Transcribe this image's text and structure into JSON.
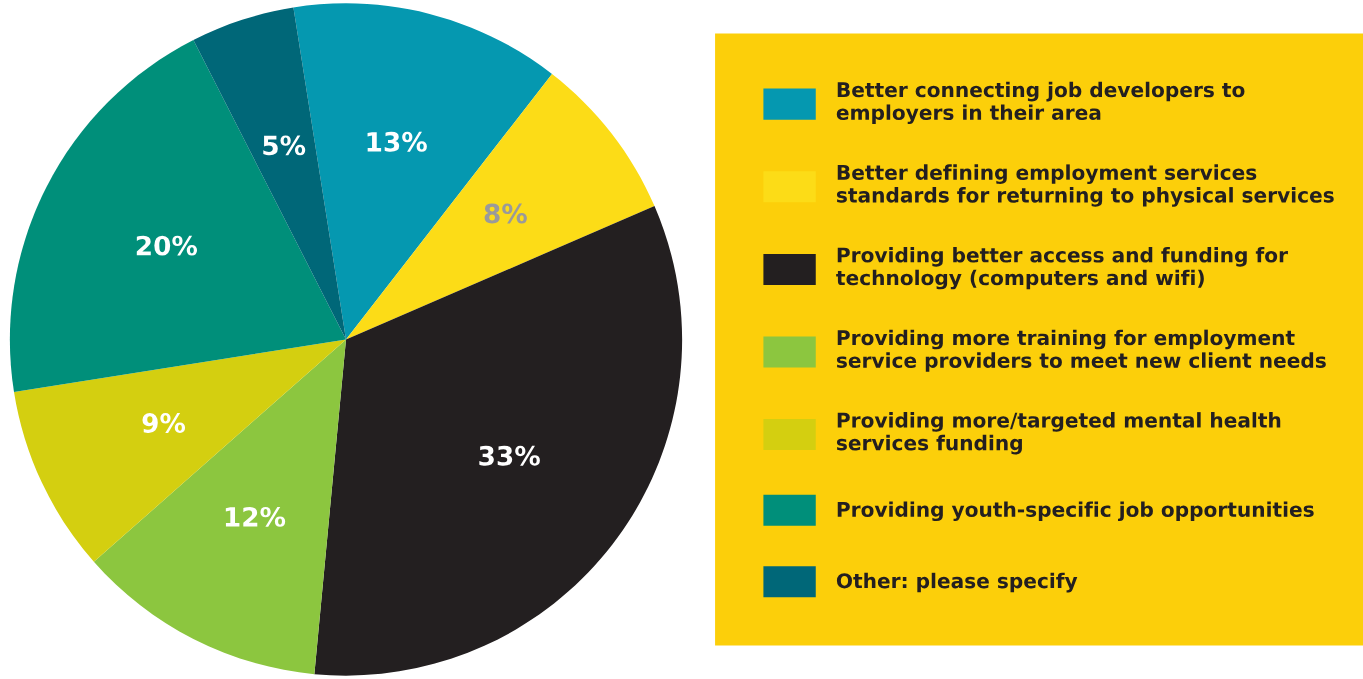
{
  "chart_data": {
    "type": "pie",
    "categories": [
      "Better connecting job developers to employers in their area",
      "Better defining employment services standards for returning to physical services",
      "Providing better access and funding for technology (computers and wifi)",
      "Providing more training for employment service providers to meet new client needs",
      "Providing more/targeted mental health services funding",
      "Providing youth-specific job opportunities",
      "Other: please specify"
    ],
    "values": [
      13,
      8,
      33,
      12,
      9,
      20,
      5
    ],
    "colors": [
      "#0598b0",
      "#fcdc17",
      "#231f20",
      "#8cc63f",
      "#d4cf10",
      "#008f7a",
      "#006778"
    ],
    "value_labels": [
      "13%",
      "8%",
      "33%",
      "12%",
      "9%",
      "20%",
      "5%"
    ],
    "legend": "right"
  }
}
